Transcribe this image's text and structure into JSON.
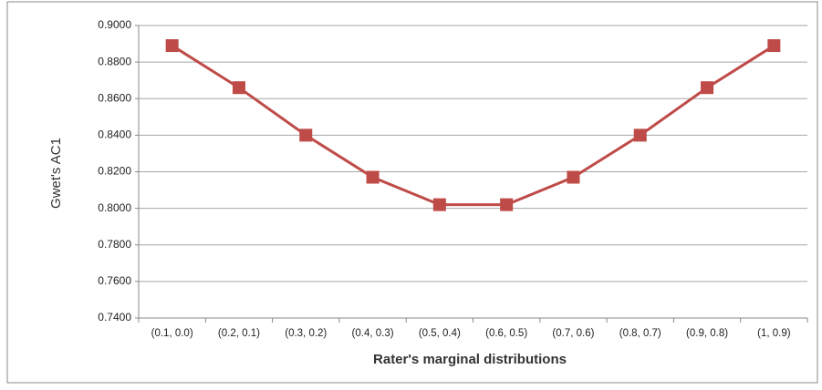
{
  "chart_data": {
    "type": "line",
    "x_label": "Rater's marginal distributions",
    "y_label": "Gwet's AC1",
    "categories": [
      "(0.1, 0.0)",
      "(0.2, 0.1)",
      "(0.3, 0.2)",
      "(0.4, 0.3)",
      "(0.5, 0.4)",
      "(0.6, 0.5)",
      "(0.7, 0.6)",
      "(0.8, 0.7)",
      "(0.9, 0.8)",
      "(1, 0.9)"
    ],
    "values": [
      0.889,
      0.866,
      0.84,
      0.817,
      0.802,
      0.802,
      0.817,
      0.84,
      0.866,
      0.889
    ],
    "color": "#be4b48",
    "ylim": [
      0.74,
      0.9
    ],
    "yticks": [
      {
        "value": 0.74,
        "label": "0.7400"
      },
      {
        "value": 0.76,
        "label": "0.7600"
      },
      {
        "value": 0.78,
        "label": "0.7800"
      },
      {
        "value": 0.8,
        "label": "0.8000"
      },
      {
        "value": 0.82,
        "label": "0.8200"
      },
      {
        "value": 0.84,
        "label": "0.8400"
      },
      {
        "value": 0.86,
        "label": "0.8600"
      },
      {
        "value": 0.88,
        "label": "0.8800"
      },
      {
        "value": 0.9,
        "label": "0.9000"
      }
    ],
    "grid": true
  }
}
